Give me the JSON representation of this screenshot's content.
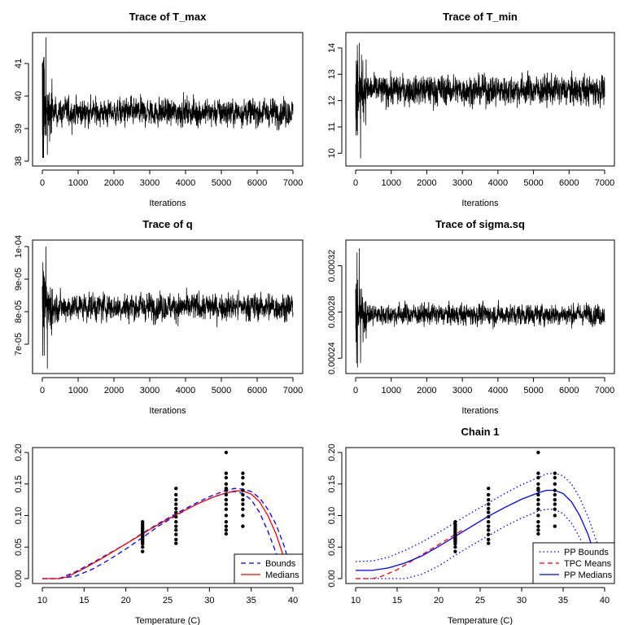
{
  "chart_data": [
    {
      "type": "line",
      "title": "Trace of T_max",
      "xlabel": "Iterations",
      "ylabel": "",
      "xlim": [
        0,
        7000
      ],
      "ylim": [
        38,
        41.8
      ],
      "xticks": [
        "0",
        "1000",
        "2000",
        "3000",
        "4000",
        "5000",
        "6000",
        "7000"
      ],
      "yticks": [
        "38",
        "39",
        "40",
        "41"
      ],
      "series": [
        {
          "color": "#000000",
          "center": 39.5,
          "spread": 0.55,
          "burnin_peak": 41.8,
          "burnin_low": 38.2,
          "max": 41.2,
          "min": 38.1
        }
      ]
    },
    {
      "type": "line",
      "title": "Trace of T_min",
      "xlabel": "Iterations",
      "ylabel": "",
      "xlim": [
        0,
        7000
      ],
      "ylim": [
        9.7,
        14.4
      ],
      "xticks": [
        "0",
        "1000",
        "2000",
        "3000",
        "4000",
        "5000",
        "6000",
        "7000"
      ],
      "yticks": [
        "10",
        "11",
        "12",
        "13",
        "14"
      ],
      "series": [
        {
          "color": "#000000",
          "center": 12.4,
          "spread": 0.75,
          "burnin_peak": 14.2,
          "burnin_low": 9.8,
          "max": 14.3,
          "min": 10.5
        }
      ]
    },
    {
      "type": "line",
      "title": "Trace of q",
      "xlabel": "Iterations",
      "ylabel": "",
      "xlim": [
        0,
        7000
      ],
      "ylim": [
        6.25e-05,
        0.0001005
      ],
      "xticks": [
        "0",
        "1000",
        "2000",
        "3000",
        "4000",
        "5000",
        "6000",
        "7000"
      ],
      "yticks": [
        "7e-05",
        "8e-05",
        "9e-05",
        "1e-04"
      ],
      "series": [
        {
          "color": "#000000",
          "center": 8.15e-05,
          "spread": 5.5e-06,
          "burnin_peak": 0.0001,
          "burnin_low": 6.25e-05,
          "max": 9.95e-05,
          "min": 6.65e-05
        }
      ]
    },
    {
      "type": "line",
      "title": "Trace of sigma.sq",
      "xlabel": "Iterations",
      "ylabel": "",
      "xlim": [
        0,
        7000
      ],
      "ylim": [
        0.000231,
        0.000338
      ],
      "xticks": [
        "0",
        "1000",
        "2000",
        "3000",
        "4000",
        "5000",
        "6000",
        "7000"
      ],
      "yticks": [
        "0.00024",
        "0.00028",
        "0.00032"
      ],
      "series": [
        {
          "color": "#000000",
          "center": 0.000278,
          "spread": 1.2e-05,
          "burnin_peak": 0.000335,
          "burnin_low": 0.000236,
          "max": 0.000336,
          "min": 0.000232
        }
      ]
    },
    {
      "type": "scatter",
      "title": "",
      "xlabel": "Temperature (C)",
      "ylabel": "",
      "xlim": [
        10,
        40
      ],
      "ylim": [
        0,
        0.2
      ],
      "xticks": [
        "10",
        "15",
        "20",
        "25",
        "30",
        "35",
        "40"
      ],
      "yticks": [
        "0.00",
        "0.05",
        "0.10",
        "0.15",
        "0.20"
      ],
      "legend_position": "bottom-right",
      "points": [
        {
          "x": 22,
          "y": [
            0.043,
            0.05,
            0.055,
            0.058,
            0.06,
            0.062,
            0.064,
            0.066,
            0.068,
            0.07,
            0.072,
            0.075,
            0.078,
            0.08,
            0.083,
            0.086,
            0.09
          ]
        },
        {
          "x": 26,
          "y": [
            0.056,
            0.062,
            0.07,
            0.077,
            0.083,
            0.09,
            0.098,
            0.105,
            0.111,
            0.118,
            0.125,
            0.133,
            0.143
          ]
        },
        {
          "x": 32,
          "y": [
            0.071,
            0.077,
            0.083,
            0.09,
            0.1,
            0.11,
            0.118,
            0.125,
            0.133,
            0.14,
            0.143,
            0.15,
            0.16,
            0.167,
            0.2
          ]
        },
        {
          "x": 34,
          "y": [
            0.083,
            0.1,
            0.11,
            0.118,
            0.125,
            0.133,
            0.14,
            0.15,
            0.16,
            0.167
          ]
        }
      ],
      "series": [
        {
          "name": "Bounds",
          "color": "#0000ff",
          "style": "dashed",
          "x": [
            10,
            12,
            14,
            16,
            18,
            20,
            22,
            24,
            26,
            28,
            30,
            32,
            33,
            34,
            35,
            36,
            37,
            38,
            39,
            40
          ],
          "y": [
            0,
            0,
            0.011,
            0.025,
            0.04,
            0.055,
            0.072,
            0.088,
            0.103,
            0.117,
            0.13,
            0.14,
            0.143,
            0.142,
            0.138,
            0.128,
            0.11,
            0.085,
            0.05,
            0
          ]
        },
        {
          "name": "",
          "color": "#0000ff",
          "style": "dashed",
          "x": [
            10,
            12,
            14,
            16,
            18,
            20,
            22,
            24,
            26,
            28,
            30,
            32,
            33,
            34,
            35,
            36,
            37,
            38,
            39
          ],
          "y": [
            0,
            0,
            0.004,
            0.015,
            0.03,
            0.047,
            0.065,
            0.084,
            0.1,
            0.115,
            0.127,
            0.136,
            0.138,
            0.135,
            0.125,
            0.105,
            0.075,
            0.04,
            0
          ]
        },
        {
          "name": "Medians",
          "color": "#ff0000",
          "style": "solid",
          "x": [
            10,
            12,
            13,
            15,
            17,
            19,
            21,
            23,
            25,
            27,
            29,
            31,
            33,
            34,
            35,
            36,
            37,
            38,
            39,
            39.6
          ],
          "y": [
            0,
            0,
            0.003,
            0.016,
            0.031,
            0.047,
            0.063,
            0.079,
            0.094,
            0.108,
            0.121,
            0.132,
            0.139,
            0.139,
            0.134,
            0.122,
            0.1,
            0.07,
            0.03,
            0
          ]
        }
      ]
    },
    {
      "type": "scatter",
      "title": "Chain 1",
      "xlabel": "Temperature (C)",
      "ylabel": "",
      "xlim": [
        10,
        40
      ],
      "ylim": [
        0,
        0.2
      ],
      "xticks": [
        "10",
        "15",
        "20",
        "25",
        "30",
        "35",
        "40"
      ],
      "yticks": [
        "0.00",
        "0.05",
        "0.10",
        "0.15",
        "0.20"
      ],
      "legend_position": "bottom-right",
      "points": [
        {
          "x": 22,
          "y": [
            0.043,
            0.05,
            0.055,
            0.058,
            0.06,
            0.062,
            0.064,
            0.066,
            0.068,
            0.07,
            0.072,
            0.075,
            0.078,
            0.08,
            0.083,
            0.086,
            0.09
          ]
        },
        {
          "x": 26,
          "y": [
            0.056,
            0.062,
            0.07,
            0.077,
            0.083,
            0.09,
            0.098,
            0.105,
            0.111,
            0.118,
            0.125,
            0.133,
            0.143
          ]
        },
        {
          "x": 32,
          "y": [
            0.071,
            0.077,
            0.083,
            0.09,
            0.1,
            0.11,
            0.118,
            0.125,
            0.133,
            0.14,
            0.143,
            0.15,
            0.16,
            0.167,
            0.2
          ]
        },
        {
          "x": 34,
          "y": [
            0.083,
            0.1,
            0.11,
            0.118,
            0.125,
            0.133,
            0.14,
            0.15,
            0.16,
            0.167
          ]
        }
      ],
      "series": [
        {
          "name": "PP Bounds",
          "color": "#0000ff",
          "style": "dotted",
          "x": [
            10,
            12,
            14,
            16,
            18,
            20,
            22,
            24,
            26,
            28,
            30,
            32,
            33,
            34,
            35,
            36,
            37,
            38,
            39,
            39.7
          ],
          "y": [
            0.027,
            0.028,
            0.034,
            0.045,
            0.058,
            0.073,
            0.089,
            0.105,
            0.12,
            0.135,
            0.149,
            0.16,
            0.166,
            0.167,
            0.163,
            0.15,
            0.128,
            0.098,
            0.06,
            0.035
          ]
        },
        {
          "name": "",
          "color": "#0000ff",
          "style": "dotted",
          "x": [
            10,
            12,
            14,
            16,
            18,
            20,
            22,
            24,
            26,
            28,
            30,
            32,
            33,
            34,
            35,
            36,
            37,
            38,
            39
          ],
          "y": [
            0,
            0,
            0,
            0,
            0.007,
            0.02,
            0.037,
            0.053,
            0.068,
            0.083,
            0.096,
            0.107,
            0.11,
            0.11,
            0.103,
            0.088,
            0.065,
            0.035,
            0
          ]
        },
        {
          "name": "TPC Means",
          "color": "#ff0000",
          "style": "dashed",
          "x": [
            10,
            12,
            13,
            15,
            17,
            19,
            21,
            23
          ],
          "y": [
            0,
            0,
            0.003,
            0.014,
            0.03,
            0.046,
            0.062,
            0.078
          ]
        },
        {
          "name": "PP Medians",
          "color": "#0000ff",
          "style": "solid",
          "x": [
            10,
            12,
            14,
            16,
            18,
            20,
            22,
            24,
            26,
            28,
            30,
            32,
            33,
            34,
            35,
            36,
            37,
            38,
            39,
            39.5
          ],
          "y": [
            0.013,
            0.013,
            0.017,
            0.025,
            0.036,
            0.051,
            0.067,
            0.083,
            0.099,
            0.113,
            0.126,
            0.136,
            0.14,
            0.14,
            0.135,
            0.122,
            0.1,
            0.07,
            0.03,
            0.005
          ]
        }
      ]
    }
  ]
}
